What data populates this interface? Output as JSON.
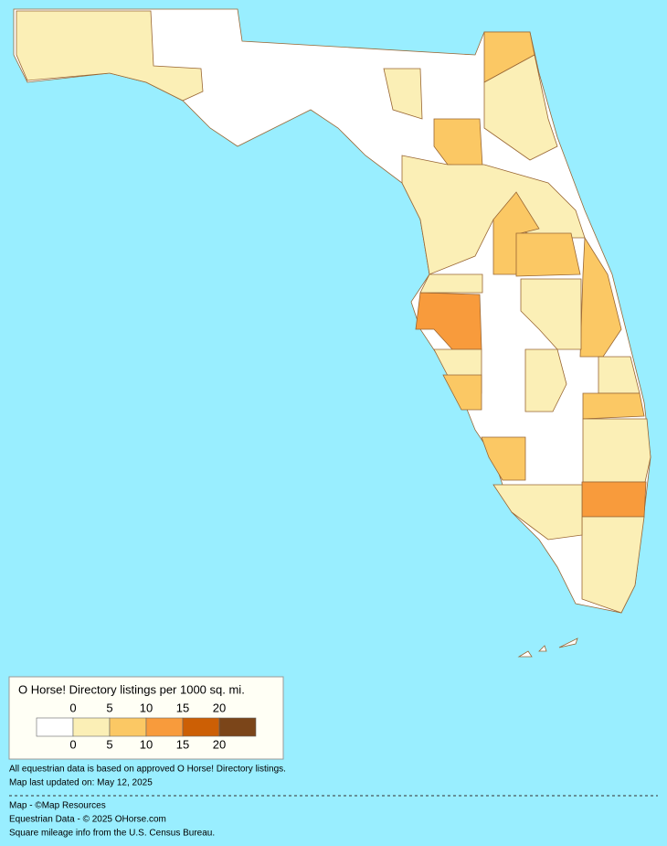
{
  "legend": {
    "title": "O Horse! Directory listings per 1000 sq. mi.",
    "top_labels": [
      0,
      5,
      10,
      15,
      20
    ],
    "bottom_labels": [
      0,
      5,
      10,
      15,
      20
    ],
    "colors": [
      "#ffffff",
      "#fbefb6",
      "#fbc864",
      "#f89b3c",
      "#cc5f05",
      "#7b4519"
    ]
  },
  "notes": [
    "All equestrian data is based on approved O Horse! Directory listings.",
    "Map last updated on: May 12, 2025"
  ],
  "credits": [
    "Map - ©Map Resources",
    "Equestrian Data - © 2025 OHorse.com",
    "Square mileage info from the U.S. Census Bureau."
  ]
}
